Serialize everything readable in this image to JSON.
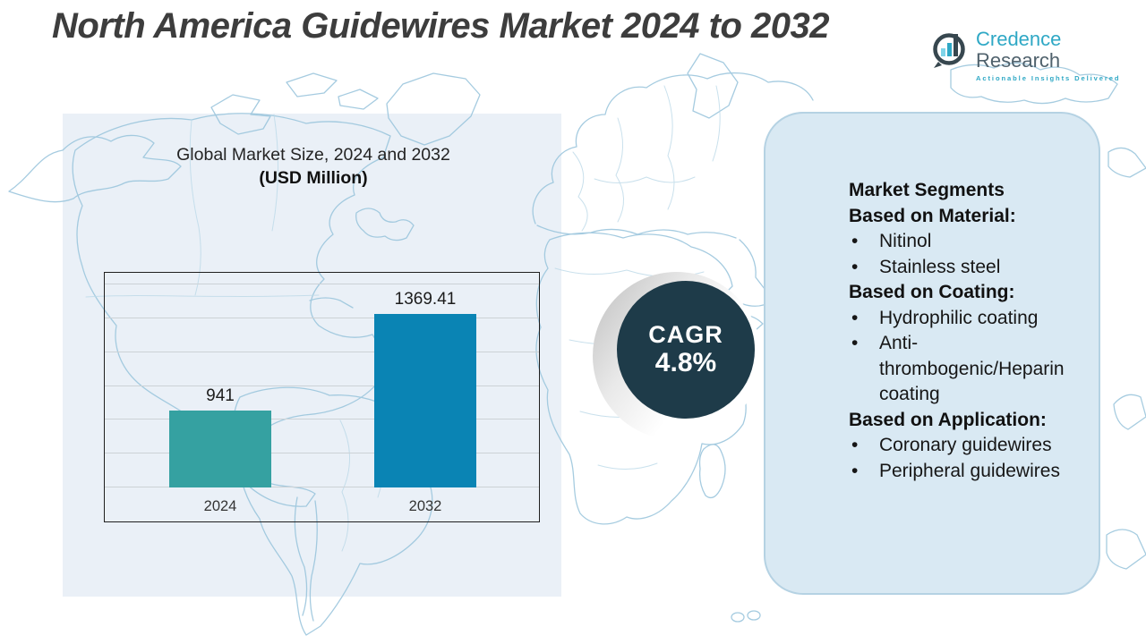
{
  "page": {
    "title": "North America Guidewires Market 2024 to 2032"
  },
  "logo": {
    "brand_primary": "Credence",
    "brand_secondary": "Research",
    "tagline": "Actionable Insights Delivered"
  },
  "chart_panel": {
    "heading_line1": "Global Market Size, 2024 and 2032",
    "heading_line2": "(USD Million)"
  },
  "chart_data": {
    "type": "bar",
    "title": "Global Market Size, 2024 and 2032 (USD Million)",
    "categories": [
      "2024",
      "2032"
    ],
    "values": [
      941,
      1369.41
    ],
    "value_labels": [
      "941",
      "1369.41"
    ],
    "ylim": [
      600,
      1500
    ],
    "gridline_count": 7,
    "grid": true,
    "legend": "none",
    "bar_colors": [
      "#35a1a1",
      "#0a84b4"
    ]
  },
  "cagr": {
    "label": "CAGR",
    "value": "4.8%"
  },
  "segments_panel": {
    "title": "Market Segments",
    "groups": [
      {
        "heading": "Based on Material:",
        "items": [
          "Nitinol",
          "Stainless steel"
        ]
      },
      {
        "heading": "Based on Coating:",
        "items": [
          "Hydrophilic coating",
          "Anti-thrombogenic/Heparin coating"
        ]
      },
      {
        "heading": "Based on Application:",
        "items": [
          "Coronary guidewires",
          "Peripheral guidewires"
        ]
      }
    ]
  },
  "colors": {
    "bar_2024": "#35a1a1",
    "bar_2032": "#0a84b4",
    "cagr_circle": "#1e3b49",
    "left_panel_bg": "#eaf0f7",
    "right_panel_bg": "#d9e9f3",
    "right_panel_border": "#b5d2e3",
    "map_line": "#9cc6dd",
    "brand_teal": "#2fa8c5",
    "brand_slate": "#4f616c"
  }
}
